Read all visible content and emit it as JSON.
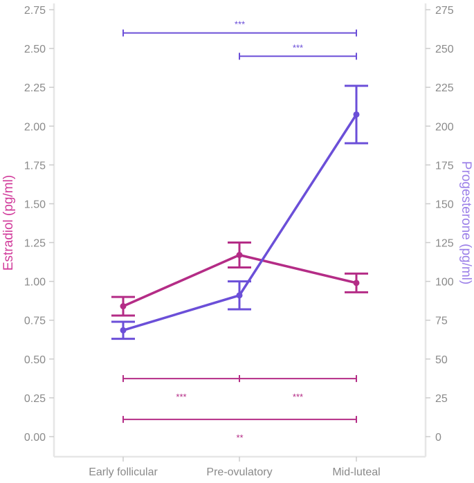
{
  "chart_data": {
    "type": "line",
    "categories": [
      "Early follicular",
      "Pre-ovulatory",
      "Mid-luteal"
    ],
    "y_left": {
      "label": "Estradiol (pg/ml)",
      "range": [
        0,
        2.75
      ],
      "ticks": [
        "0.00",
        "0.25",
        "0.50",
        "0.75",
        "1.00",
        "1.25",
        "1.50",
        "1.75",
        "2.00",
        "2.25",
        "2.50",
        "2.75"
      ]
    },
    "y_right": {
      "label": "Progesterone (pg/ml)",
      "range": [
        0,
        275
      ],
      "ticks": [
        "0",
        "25",
        "50",
        "75",
        "100",
        "125",
        "150",
        "175",
        "200",
        "225",
        "250",
        "275"
      ]
    },
    "grid": false,
    "series": [
      {
        "name": "Estradiol",
        "axis": "left",
        "color": "#B42C86",
        "values": [
          0.84,
          1.17,
          0.99
        ],
        "err_low": [
          0.78,
          1.09,
          0.93
        ],
        "err_high": [
          0.9,
          1.25,
          1.05
        ]
      },
      {
        "name": "Progesterone",
        "axis": "right",
        "color": "#6B4FD8",
        "values": [
          68.5,
          91,
          207.5
        ],
        "err_low": [
          63,
          82,
          189
        ],
        "err_high": [
          74,
          100,
          226
        ]
      }
    ],
    "significance": [
      {
        "color": "#6B4FD8",
        "from": 0,
        "to": 2,
        "level": 2.6,
        "label": "***",
        "label_pos": "above"
      },
      {
        "color": "#6B4FD8",
        "from": 1,
        "to": 2,
        "level": 2.45,
        "label": "***",
        "label_pos": "above"
      },
      {
        "color": "#B42C86",
        "from": 0,
        "to": 1,
        "level": 0.374,
        "label": "***",
        "label_pos": "below"
      },
      {
        "color": "#B42C86",
        "from": 1,
        "to": 2,
        "level": 0.374,
        "label": "***",
        "label_pos": "below"
      },
      {
        "color": "#B42C86",
        "from": 0,
        "to": 2,
        "level": 0.111,
        "label": "**",
        "label_pos": "below"
      }
    ]
  }
}
